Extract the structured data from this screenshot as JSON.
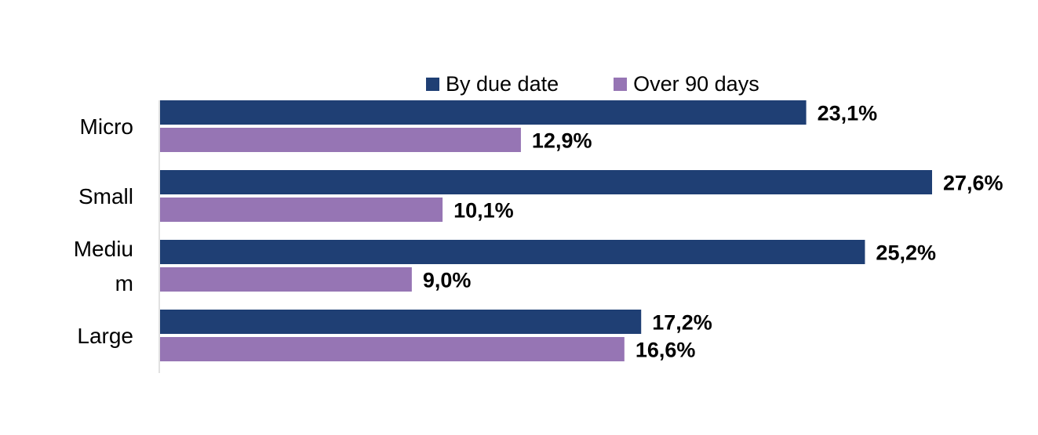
{
  "chart_data": {
    "type": "bar",
    "orientation": "horizontal",
    "categories": [
      "Micro",
      "Small",
      "Medium",
      "Large"
    ],
    "category_labels_display": [
      [
        "Micro"
      ],
      [
        "Small"
      ],
      [
        "Mediu",
        "m"
      ],
      [
        "Large"
      ]
    ],
    "series": [
      {
        "name": "By due date",
        "color": "#1f3f74",
        "values": [
          23.1,
          27.6,
          25.2,
          17.2
        ],
        "labels": [
          "23,1%",
          "27,6%",
          "25,2%",
          "17,2%"
        ]
      },
      {
        "name": "Over 90 days",
        "color": "#9675b4",
        "values": [
          12.9,
          10.1,
          9.0,
          16.6
        ],
        "labels": [
          "12,9%",
          "10,1%",
          "9,0%",
          "16,6%"
        ]
      }
    ],
    "xlim": [
      0,
      30
    ],
    "grid": false,
    "legend_position": "top"
  }
}
